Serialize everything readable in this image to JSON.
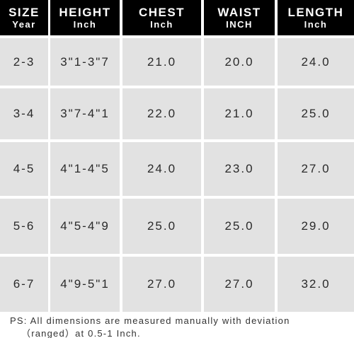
{
  "table": {
    "header": [
      [
        "SIZE",
        "Year"
      ],
      [
        "HEIGHT",
        "Inch"
      ],
      [
        "CHEST",
        "Inch"
      ],
      [
        "WAIST",
        "INCH"
      ],
      [
        "LENGTH",
        "Inch"
      ]
    ],
    "rows": [
      [
        "2-3",
        "3\"1-3\"7",
        "21.0",
        "20.0",
        "24.0"
      ],
      [
        "3-4",
        "3\"7-4\"1",
        "22.0",
        "21.0",
        "25.0"
      ],
      [
        "4-5",
        "4\"1-4\"5",
        "24.0",
        "23.0",
        "27.0"
      ],
      [
        "5-6",
        "4\"5-4\"9",
        "25.0",
        "25.0",
        "29.0"
      ],
      [
        "6-7",
        "4\"9-5\"1",
        "27.0",
        "27.0",
        "32.0"
      ]
    ]
  },
  "note": [
    "PS:  All dimensions are measured manually with deviation",
    "（ranged）at 0.5-1 Inch."
  ]
}
